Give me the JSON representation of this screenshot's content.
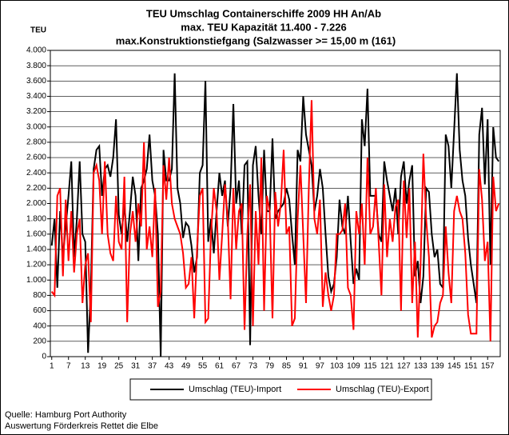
{
  "chart_data": {
    "type": "line",
    "title": "TEU Umschlag Containerschiffe 2009 HH An/Ab",
    "subtitle": [
      "max. TEU Kapazität  11.400 - 7.226",
      "max.Konstruktionstiefgang (Salzwasser >= 15,00 m (161)"
    ],
    "y_label": "TEU",
    "source": [
      "Quelle: Hamburg Port Authority",
      "Auswertung Förderkreis Rettet die Elbe"
    ],
    "categories": [
      1,
      null,
      null,
      null,
      null,
      null,
      7,
      null,
      null,
      null,
      null,
      null,
      13,
      null,
      null,
      null,
      null,
      null,
      19,
      null,
      null,
      null,
      null,
      null,
      25,
      null,
      null,
      null,
      null,
      null,
      31,
      null,
      null,
      null,
      null,
      null,
      37,
      null,
      null,
      null,
      null,
      null,
      43,
      null,
      null,
      null,
      null,
      null,
      49,
      null,
      null,
      null,
      null,
      null,
      55,
      null,
      null,
      null,
      null,
      null,
      61,
      null,
      null,
      null,
      null,
      null,
      67,
      null,
      null,
      null,
      null,
      null,
      73,
      null,
      null,
      null,
      null,
      null,
      79,
      null,
      null,
      null,
      null,
      null,
      85,
      null,
      null,
      null,
      null,
      null,
      91,
      null,
      null,
      null,
      null,
      null,
      97,
      null,
      null,
      null,
      null,
      null,
      103,
      null,
      null,
      null,
      null,
      null,
      109,
      null,
      null,
      null,
      null,
      null,
      115,
      null,
      null,
      null,
      null,
      null,
      121,
      null,
      null,
      null,
      null,
      null,
      127,
      null,
      null,
      null,
      null,
      null,
      133,
      null,
      null,
      null,
      null,
      null,
      139,
      null,
      null,
      null,
      null,
      null,
      145,
      null,
      null,
      null,
      null,
      null,
      151,
      null,
      null,
      null,
      null,
      null,
      157,
      null,
      null,
      null,
      null
    ],
    "series": [
      {
        "name": "Umschlag (TEU)-Import",
        "color": "#000000",
        "values": [
          1450,
          1800,
          900,
          1900,
          1300,
          1700,
          2100,
          2550,
          1300,
          1800,
          2550,
          1600,
          1500,
          50,
          900,
          2450,
          2700,
          2750,
          2100,
          2450,
          2500,
          2350,
          2600,
          3100,
          1850,
          1600,
          2000,
          1500,
          1900,
          2350,
          2100,
          1250,
          2200,
          2300,
          2450,
          2900,
          2300,
          2100,
          1600,
          0,
          2700,
          2300,
          2300,
          2450,
          3700,
          2200,
          2000,
          1550,
          1750,
          1700,
          1450,
          1100,
          1300,
          2400,
          2500,
          3600,
          1500,
          1800,
          1350,
          1900,
          2400,
          2100,
          2300,
          1700,
          2200,
          3300,
          2000,
          2300,
          1600,
          2500,
          2550,
          150,
          2500,
          2750,
          2100,
          1600,
          2700,
          1900,
          1900,
          2850,
          1800,
          1900,
          1950,
          2000,
          2200,
          2050,
          1600,
          1200,
          2700,
          2550,
          3400,
          2900,
          2700,
          2500,
          1900,
          2100,
          2450,
          2200,
          1600,
          1050,
          850,
          950,
          1300,
          2050,
          1700,
          1600,
          2100,
          1500,
          950,
          1150,
          1000,
          3100,
          2750,
          3500,
          2100,
          2100,
          2100,
          1600,
          1500,
          2550,
          2300,
          2100,
          1900,
          2200,
          1600,
          2350,
          2550,
          2000,
          2300,
          2500,
          1050,
          1250,
          700,
          1050,
          2200,
          2150,
          1600,
          1300,
          1400,
          950,
          900,
          2900,
          2750,
          2200,
          2950,
          3700,
          2700,
          2300,
          2100,
          1550,
          1200,
          950,
          700,
          2900,
          3250,
          2250,
          3100,
          1200,
          3000,
          2600,
          2550
        ]
      },
      {
        "name": "Umschlag (TEU)-Export",
        "color": "#ff0000",
        "values": [
          850,
          800,
          2100,
          2200,
          1050,
          2050,
          1250,
          1900,
          1100,
          1600,
          1800,
          700,
          1200,
          1350,
          450,
          2400,
          2500,
          2300,
          1600,
          2550,
          1600,
          1350,
          1250,
          2100,
          1500,
          1400,
          2350,
          450,
          1600,
          1900,
          1500,
          2000,
          1700,
          2800,
          1400,
          1700,
          1300,
          2200,
          650,
          850,
          2500,
          2050,
          2600,
          2000,
          1800,
          1700,
          1600,
          1350,
          900,
          950,
          1300,
          500,
          1400,
          2100,
          2200,
          450,
          500,
          1600,
          2200,
          1900,
          1000,
          1600,
          2250,
          1800,
          750,
          2200,
          1400,
          1900,
          2000,
          350,
          1600,
          2250,
          400,
          1900,
          1200,
          2600,
          600,
          2100,
          1900,
          500,
          2150,
          1700,
          2000,
          2700,
          1600,
          1700,
          400,
          500,
          1800,
          2500,
          1600,
          700,
          2200,
          3350,
          1800,
          1600,
          2050,
          650,
          1100,
          800,
          600,
          800,
          1600,
          1600,
          1650,
          2000,
          900,
          800,
          350,
          1900,
          1600,
          2000,
          1200,
          2600,
          1600,
          1700,
          2200,
          1500,
          800,
          2250,
          1300,
          1800,
          1500,
          1950,
          2050,
          600,
          2300,
          1550,
          2200,
          700,
          1500,
          250,
          1200,
          2650,
          1800,
          1300,
          250,
          400,
          450,
          700,
          800,
          1700,
          1100,
          700,
          1900,
          2100,
          1900,
          1800,
          1350,
          550,
          300,
          300,
          300,
          2450,
          2050,
          1250,
          1500,
          200,
          2350,
          1900,
          2000
        ]
      }
    ],
    "ylim": [
      0,
      4000
    ],
    "yticks": [
      0,
      {
        "value": 200,
        "label": "200"
      },
      {
        "value": 400,
        "label": "400"
      },
      {
        "value": 600,
        "label": "600"
      },
      {
        "value": 800,
        "label": "800"
      },
      {
        "value": 1000,
        "label": "1.000"
      },
      {
        "value": 1200,
        "label": "1.200"
      },
      {
        "value": 1400,
        "label": "1.400"
      },
      {
        "value": 1600,
        "label": "1.600"
      },
      {
        "value": 1800,
        "label": "1.800"
      },
      {
        "value": 2000,
        "label": "2.000"
      },
      {
        "value": 2200,
        "label": "2.200"
      },
      {
        "value": 2400,
        "label": "2.400"
      },
      {
        "value": 2600,
        "label": "2.600"
      },
      {
        "value": 2800,
        "label": "2.800"
      },
      {
        "value": 3000,
        "label": "3.000"
      },
      {
        "value": 3200,
        "label": "3.200"
      },
      {
        "value": 3400,
        "label": "3.400"
      },
      {
        "value": 3600,
        "label": "3.600"
      },
      {
        "value": 3800,
        "label": "3.800"
      },
      {
        "value": 4000,
        "label": "4.000"
      }
    ],
    "grid": true,
    "legend": "bottom"
  }
}
